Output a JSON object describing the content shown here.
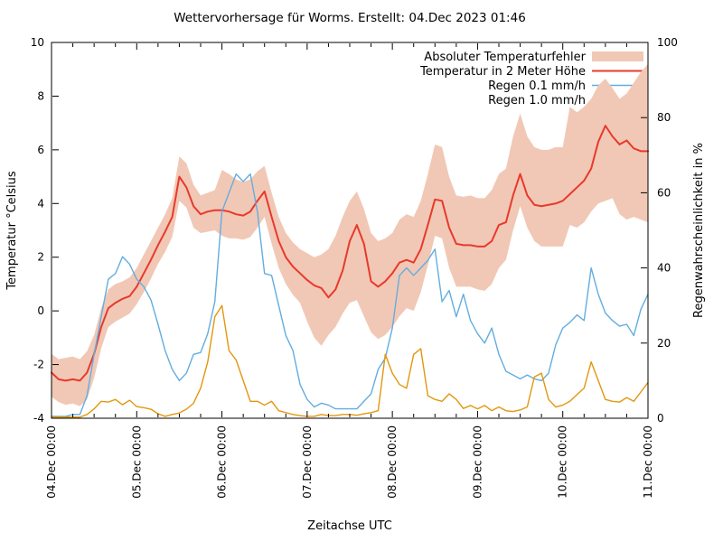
{
  "title": "Wettervorhersage für Worms. Erstellt: 04.Dec 2023 01:46",
  "chart_data": {
    "type": "line",
    "title": "Wettervorhersage für Worms. Erstellt: 04.Dec 2023 01:46",
    "xlabel": "Zeitachse UTC",
    "ylabel_left": "Temperatur °Celsius",
    "ylabel_right": "Regenwahrscheinlichkeit in %",
    "grid": false,
    "legend_position": "top-right-inside",
    "x_axis": {
      "total_hours": 168,
      "major_tick_hours": 24,
      "minor_tick_hours": 6,
      "tick_labels": [
        "04.Dec 00:00",
        "05.Dec 00:00",
        "06.Dec 00:00",
        "07.Dec 00:00",
        "08.Dec 00:00",
        "09.Dec 00:00",
        "10.Dec 00:00",
        "11.Dec 00:00"
      ]
    },
    "y_left": {
      "min": -4,
      "max": 10,
      "ticks": [
        -4,
        -2,
        0,
        2,
        4,
        6,
        8,
        10
      ]
    },
    "y_right": {
      "min": 0,
      "max": 100,
      "ticks": [
        0,
        20,
        40,
        60,
        80,
        100
      ]
    },
    "sample_step_hours": 2,
    "series": [
      {
        "name": "Absoluter Temperaturfehler",
        "type": "band",
        "axis": "left",
        "color": "#f1c8b5",
        "upper": [
          -1.6,
          -1.8,
          -1.75,
          -1.7,
          -1.8,
          -1.5,
          -0.9,
          0.1,
          0.8,
          1.0,
          1.1,
          1.25,
          1.6,
          2.1,
          2.6,
          3.1,
          3.6,
          4.2,
          5.75,
          5.5,
          4.7,
          4.3,
          4.4,
          4.5,
          5.25,
          5.1,
          4.9,
          4.8,
          4.9,
          5.2,
          5.4,
          4.4,
          3.5,
          2.9,
          2.55,
          2.3,
          2.15,
          2.0,
          2.1,
          2.3,
          2.8,
          3.5,
          4.1,
          4.45,
          3.8,
          2.9,
          2.6,
          2.7,
          2.9,
          3.4,
          3.6,
          3.5,
          4.1,
          5.1,
          6.2,
          6.1,
          5.0,
          4.3,
          4.25,
          4.3,
          4.2,
          4.2,
          4.5,
          5.1,
          5.3,
          6.5,
          7.35,
          6.5,
          6.1,
          6.0,
          6.0,
          6.1,
          6.1,
          7.6,
          7.4,
          7.6,
          7.9,
          8.4,
          8.65,
          8.3,
          7.9,
          8.1,
          8.5,
          8.9,
          9.2
        ],
        "lower": [
          -3.2,
          -3.4,
          -3.5,
          -3.45,
          -3.55,
          -3.3,
          -2.5,
          -1.4,
          -0.6,
          -0.4,
          -0.25,
          -0.1,
          0.25,
          0.7,
          1.2,
          1.75,
          2.2,
          2.75,
          4.1,
          3.85,
          3.1,
          2.9,
          2.95,
          3.0,
          2.8,
          2.7,
          2.7,
          2.65,
          2.75,
          3.1,
          3.5,
          2.5,
          1.6,
          1.0,
          0.6,
          0.3,
          -0.4,
          -1.0,
          -1.3,
          -0.9,
          -0.6,
          -0.1,
          0.3,
          0.4,
          -0.2,
          -0.8,
          -1.05,
          -0.9,
          -0.6,
          -0.2,
          0.1,
          0.0,
          0.7,
          1.7,
          2.8,
          2.7,
          1.6,
          0.9,
          0.9,
          0.9,
          0.8,
          0.75,
          1.0,
          1.6,
          1.9,
          3.0,
          3.9,
          3.1,
          2.6,
          2.4,
          2.4,
          2.4,
          2.4,
          3.2,
          3.1,
          3.3,
          3.7,
          4.0,
          4.1,
          4.2,
          3.6,
          3.4,
          3.5,
          3.4,
          3.3
        ]
      },
      {
        "name": "Temperatur in 2 Meter Höhe",
        "type": "line",
        "axis": "left",
        "color": "#e8392c",
        "width": 2,
        "values": [
          -2.3,
          -2.55,
          -2.6,
          -2.55,
          -2.6,
          -2.3,
          -1.6,
          -0.6,
          0.1,
          0.3,
          0.45,
          0.55,
          0.9,
          1.4,
          1.9,
          2.45,
          2.95,
          3.5,
          5.0,
          4.6,
          3.9,
          3.6,
          3.7,
          3.75,
          3.75,
          3.7,
          3.6,
          3.55,
          3.7,
          4.1,
          4.45,
          3.5,
          2.6,
          2.0,
          1.65,
          1.4,
          1.15,
          0.95,
          0.85,
          0.5,
          0.8,
          1.5,
          2.6,
          3.2,
          2.5,
          1.1,
          0.9,
          1.1,
          1.4,
          1.8,
          1.9,
          1.8,
          2.3,
          3.2,
          4.15,
          4.1,
          3.1,
          2.5,
          2.45,
          2.45,
          2.4,
          2.4,
          2.6,
          3.2,
          3.3,
          4.3,
          5.1,
          4.3,
          3.95,
          3.9,
          3.95,
          4.0,
          4.1,
          4.35,
          4.6,
          4.85,
          5.3,
          6.3,
          6.9,
          6.5,
          6.2,
          6.35,
          6.05,
          5.95,
          5.95
        ]
      },
      {
        "name": "Regen 0.1 mm/h",
        "type": "line",
        "axis": "right",
        "color": "#63ade0",
        "width": 1.4,
        "values": [
          0.5,
          0.5,
          0.5,
          1,
          1,
          6,
          17,
          27,
          37,
          38.5,
          43,
          41,
          37,
          35,
          31.5,
          25,
          18,
          13,
          10,
          12,
          17,
          17.5,
          22.5,
          31,
          55,
          60,
          65,
          63,
          65,
          55,
          38.5,
          38,
          30,
          22,
          18,
          9,
          5,
          3,
          4,
          3.5,
          2.5,
          2.5,
          2.5,
          2.5,
          4.5,
          6.5,
          13,
          16,
          24,
          38,
          40,
          38,
          40,
          42,
          45,
          31,
          34,
          27,
          33,
          26,
          22.5,
          20,
          24,
          17,
          12.5,
          11.5,
          10.5,
          11.5,
          10.5,
          10,
          12,
          19.5,
          24,
          25.5,
          27.5,
          26,
          40,
          33,
          28,
          26,
          24.5,
          25,
          22,
          29,
          33
        ]
      },
      {
        "name": "Regen 1.0 mm/h",
        "type": "line",
        "axis": "right",
        "color": "#e2970e",
        "width": 1.4,
        "values": [
          0.3,
          0.3,
          0.3,
          0.3,
          0.3,
          1,
          2.5,
          4.5,
          4.3,
          5,
          3.6,
          4.8,
          3.1,
          2.8,
          2.4,
          1.2,
          0.5,
          1,
          1.4,
          2.4,
          4,
          8,
          15,
          27,
          30,
          18,
          15.5,
          10,
          4.5,
          4.5,
          3.5,
          4.5,
          2,
          1.5,
          1,
          0.7,
          0.5,
          0.5,
          1,
          0.7,
          0.7,
          1,
          1,
          0.8,
          1.2,
          1.5,
          2,
          17,
          12,
          9,
          8,
          17,
          18.5,
          6,
          5,
          4.5,
          6.5,
          5,
          2.6,
          3.4,
          2.5,
          3.4,
          2,
          3,
          2,
          1.8,
          2.2,
          3,
          11,
          12,
          5,
          3,
          3.5,
          4.5,
          6.3,
          8,
          15,
          10,
          5,
          4.5,
          4.3,
          5.5,
          4.5,
          7,
          9.5
        ]
      }
    ]
  }
}
